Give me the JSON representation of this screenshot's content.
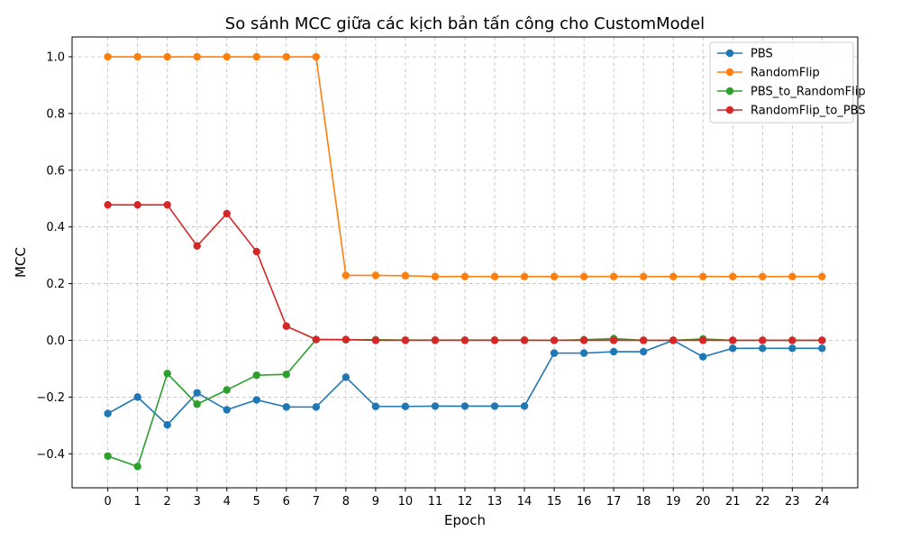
{
  "chart_data": {
    "type": "line",
    "title": "So sánh MCC giữa các kịch bản tấn công cho CustomModel",
    "xlabel": "Epoch",
    "ylabel": "MCC",
    "x": [
      0,
      1,
      2,
      3,
      4,
      5,
      6,
      7,
      8,
      9,
      10,
      11,
      12,
      13,
      14,
      15,
      16,
      17,
      18,
      19,
      20,
      21,
      22,
      23,
      24
    ],
    "xlim": [
      -1.2,
      25.2
    ],
    "ylim": [
      -0.52,
      1.07
    ],
    "yticks": [
      -0.4,
      -0.2,
      0.0,
      0.2,
      0.4,
      0.6,
      0.8,
      1.0
    ],
    "ytick_labels": [
      "−0.4",
      "−0.2",
      "0.0",
      "0.2",
      "0.4",
      "0.6",
      "0.8",
      "1.0"
    ],
    "xtick_labels": [
      "0",
      "1",
      "2",
      "3",
      "4",
      "5",
      "6",
      "7",
      "8",
      "9",
      "10",
      "11",
      "12",
      "13",
      "14",
      "15",
      "16",
      "17",
      "18",
      "19",
      "20",
      "21",
      "22",
      "23",
      "24"
    ],
    "grid": true,
    "legend_position": "top-right",
    "series": [
      {
        "name": "PBS",
        "color": "#1f77b4",
        "values": [
          -0.258,
          -0.2,
          -0.298,
          -0.185,
          -0.245,
          -0.21,
          -0.235,
          -0.235,
          -0.13,
          -0.233,
          -0.233,
          -0.232,
          -0.232,
          -0.232,
          -0.232,
          -0.045,
          -0.045,
          -0.04,
          -0.04,
          0.0,
          -0.058,
          -0.028,
          -0.028,
          -0.028,
          -0.028
        ]
      },
      {
        "name": "RandomFlip",
        "color": "#ff7f0e",
        "values": [
          1.0,
          1.0,
          1.0,
          1.0,
          1.0,
          1.0,
          1.0,
          1.0,
          0.229,
          0.229,
          0.228,
          0.225,
          0.225,
          0.225,
          0.225,
          0.225,
          0.225,
          0.225,
          0.225,
          0.225,
          0.225,
          0.225,
          0.225,
          0.225,
          0.225
        ]
      },
      {
        "name": "PBS_to_RandomFlip",
        "color": "#2ca02c",
        "values": [
          -0.408,
          -0.445,
          -0.117,
          -0.225,
          -0.175,
          -0.123,
          -0.12,
          0.003,
          0.002,
          0.002,
          0.001,
          0.001,
          0.001,
          0.001,
          0.001,
          0.0,
          0.002,
          0.006,
          0.0,
          0.0,
          0.005,
          0.0,
          0.0,
          0.0,
          0.0
        ]
      },
      {
        "name": "RandomFlip_to_PBS",
        "color": "#d62728",
        "values": [
          0.478,
          0.478,
          0.478,
          0.333,
          0.447,
          0.313,
          0.05,
          0.003,
          0.003,
          0.0,
          0.0,
          0.0,
          0.0,
          0.0,
          0.0,
          0.0,
          0.0,
          0.0,
          0.0,
          0.0,
          0.0,
          0.0,
          0.0,
          0.0,
          0.0
        ]
      }
    ]
  }
}
